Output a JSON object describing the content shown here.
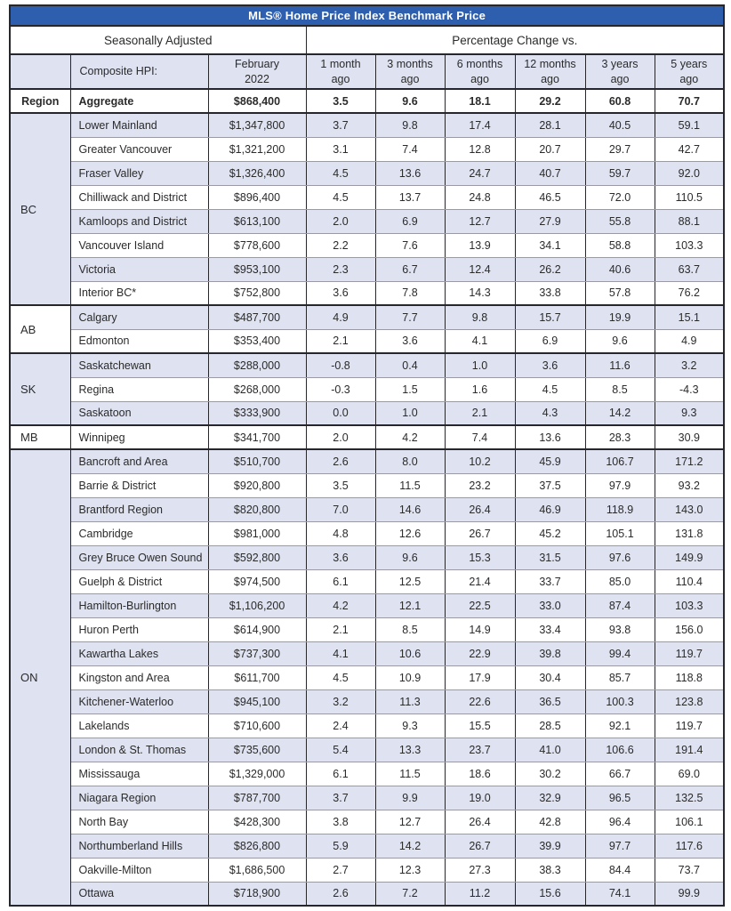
{
  "title": "MLS® Home Price Index Benchmark Price",
  "colors": {
    "title_bar": "#2e5fae",
    "row_shade": "#dee2f1",
    "border_dark": "#27272b",
    "border_light": "#999aa6",
    "text": "#2b2b2b",
    "title_text": "#ffffff"
  },
  "header": {
    "seasonally_adjusted": "Seasonally Adjusted",
    "percentage_change": "Percentage Change vs.",
    "region_column": "Region",
    "composite_hpi": "Composite HPI:",
    "period": "February\n2022",
    "change_columns": [
      "1 month\nago",
      "3 months\nago",
      "6 months\nago",
      "12 months\nago",
      "3 years\nago",
      "5 years\nago"
    ]
  },
  "aggregate": {
    "name": "Aggregate",
    "price": "$868,400",
    "changes": [
      "3.5",
      "9.6",
      "18.1",
      "29.2",
      "60.8",
      "70.7"
    ]
  },
  "groups": [
    {
      "region": "BC",
      "rows": [
        {
          "name": "Lower Mainland",
          "price": "$1,347,800",
          "changes": [
            "3.7",
            "9.8",
            "17.4",
            "28.1",
            "40.5",
            "59.1"
          ]
        },
        {
          "name": "Greater Vancouver",
          "price": "$1,321,200",
          "changes": [
            "3.1",
            "7.4",
            "12.8",
            "20.7",
            "29.7",
            "42.7"
          ]
        },
        {
          "name": "Fraser Valley",
          "price": "$1,326,400",
          "changes": [
            "4.5",
            "13.6",
            "24.7",
            "40.7",
            "59.7",
            "92.0"
          ]
        },
        {
          "name": "Chilliwack and District",
          "price": "$896,400",
          "changes": [
            "4.5",
            "13.7",
            "24.8",
            "46.5",
            "72.0",
            "110.5"
          ]
        },
        {
          "name": "Kamloops and District",
          "price": "$613,100",
          "changes": [
            "2.0",
            "6.9",
            "12.7",
            "27.9",
            "55.8",
            "88.1"
          ]
        },
        {
          "name": "Vancouver Island",
          "price": "$778,600",
          "changes": [
            "2.2",
            "7.6",
            "13.9",
            "34.1",
            "58.8",
            "103.3"
          ]
        },
        {
          "name": "Victoria",
          "price": "$953,100",
          "changes": [
            "2.3",
            "6.7",
            "12.4",
            "26.2",
            "40.6",
            "63.7"
          ]
        },
        {
          "name": "Interior BC*",
          "price": "$752,800",
          "changes": [
            "3.6",
            "7.8",
            "14.3",
            "33.8",
            "57.8",
            "76.2"
          ]
        }
      ]
    },
    {
      "region": "AB",
      "rows": [
        {
          "name": "Calgary",
          "price": "$487,700",
          "changes": [
            "4.9",
            "7.7",
            "9.8",
            "15.7",
            "19.9",
            "15.1"
          ]
        },
        {
          "name": "Edmonton",
          "price": "$353,400",
          "changes": [
            "2.1",
            "3.6",
            "4.1",
            "6.9",
            "9.6",
            "4.9"
          ]
        }
      ]
    },
    {
      "region": "SK",
      "rows": [
        {
          "name": "Saskatchewan",
          "price": "$288,000",
          "changes": [
            "-0.8",
            "0.4",
            "1.0",
            "3.6",
            "11.6",
            "3.2"
          ]
        },
        {
          "name": "Regina",
          "price": "$268,000",
          "changes": [
            "-0.3",
            "1.5",
            "1.6",
            "4.5",
            "8.5",
            "-4.3"
          ]
        },
        {
          "name": "Saskatoon",
          "price": "$333,900",
          "changes": [
            "0.0",
            "1.0",
            "2.1",
            "4.3",
            "14.2",
            "9.3"
          ]
        }
      ]
    },
    {
      "region": "MB",
      "rows": [
        {
          "name": "Winnipeg",
          "price": "$341,700",
          "changes": [
            "2.0",
            "4.2",
            "7.4",
            "13.6",
            "28.3",
            "30.9"
          ]
        }
      ]
    },
    {
      "region": "ON",
      "rows": [
        {
          "name": "Bancroft and Area",
          "price": "$510,700",
          "changes": [
            "2.6",
            "8.0",
            "10.2",
            "45.9",
            "106.7",
            "171.2"
          ]
        },
        {
          "name": "Barrie & District",
          "price": "$920,800",
          "changes": [
            "3.5",
            "11.5",
            "23.2",
            "37.5",
            "97.9",
            "93.2"
          ]
        },
        {
          "name": "Brantford Region",
          "price": "$820,800",
          "changes": [
            "7.0",
            "14.6",
            "26.4",
            "46.9",
            "118.9",
            "143.0"
          ]
        },
        {
          "name": "Cambridge",
          "price": "$981,000",
          "changes": [
            "4.8",
            "12.6",
            "26.7",
            "45.2",
            "105.1",
            "131.8"
          ]
        },
        {
          "name": "Grey Bruce Owen Sound",
          "price": "$592,800",
          "changes": [
            "3.6",
            "9.6",
            "15.3",
            "31.5",
            "97.6",
            "149.9"
          ]
        },
        {
          "name": "Guelph & District",
          "price": "$974,500",
          "changes": [
            "6.1",
            "12.5",
            "21.4",
            "33.7",
            "85.0",
            "110.4"
          ]
        },
        {
          "name": "Hamilton-Burlington",
          "price": "$1,106,200",
          "changes": [
            "4.2",
            "12.1",
            "22.5",
            "33.0",
            "87.4",
            "103.3"
          ]
        },
        {
          "name": "Huron Perth",
          "price": "$614,900",
          "changes": [
            "2.1",
            "8.5",
            "14.9",
            "33.4",
            "93.8",
            "156.0"
          ]
        },
        {
          "name": "Kawartha Lakes",
          "price": "$737,300",
          "changes": [
            "4.1",
            "10.6",
            "22.9",
            "39.8",
            "99.4",
            "119.7"
          ]
        },
        {
          "name": "Kingston and Area",
          "price": "$611,700",
          "changes": [
            "4.5",
            "10.9",
            "17.9",
            "30.4",
            "85.7",
            "118.8"
          ]
        },
        {
          "name": "Kitchener-Waterloo",
          "price": "$945,100",
          "changes": [
            "3.2",
            "11.3",
            "22.6",
            "36.5",
            "100.3",
            "123.8"
          ]
        },
        {
          "name": "Lakelands",
          "price": "$710,600",
          "changes": [
            "2.4",
            "9.3",
            "15.5",
            "28.5",
            "92.1",
            "119.7"
          ]
        },
        {
          "name": "London & St. Thomas",
          "price": "$735,600",
          "changes": [
            "5.4",
            "13.3",
            "23.7",
            "41.0",
            "106.6",
            "191.4"
          ]
        },
        {
          "name": "Mississauga",
          "price": "$1,329,000",
          "changes": [
            "6.1",
            "11.5",
            "18.6",
            "30.2",
            "66.7",
            "69.0"
          ]
        },
        {
          "name": "Niagara Region",
          "price": "$787,700",
          "changes": [
            "3.7",
            "9.9",
            "19.0",
            "32.9",
            "96.5",
            "132.5"
          ]
        },
        {
          "name": "North Bay",
          "price": "$428,300",
          "changes": [
            "3.8",
            "12.7",
            "26.4",
            "42.8",
            "96.4",
            "106.1"
          ]
        },
        {
          "name": "Northumberland Hills",
          "price": "$826,800",
          "changes": [
            "5.9",
            "14.2",
            "26.7",
            "39.9",
            "97.7",
            "117.6"
          ]
        },
        {
          "name": "Oakville-Milton",
          "price": "$1,686,500",
          "changes": [
            "2.7",
            "12.3",
            "27.3",
            "38.3",
            "84.4",
            "73.7"
          ]
        },
        {
          "name": "Ottawa",
          "price": "$718,900",
          "changes": [
            "2.6",
            "7.2",
            "11.2",
            "15.6",
            "74.1",
            "99.9"
          ]
        }
      ]
    }
  ]
}
